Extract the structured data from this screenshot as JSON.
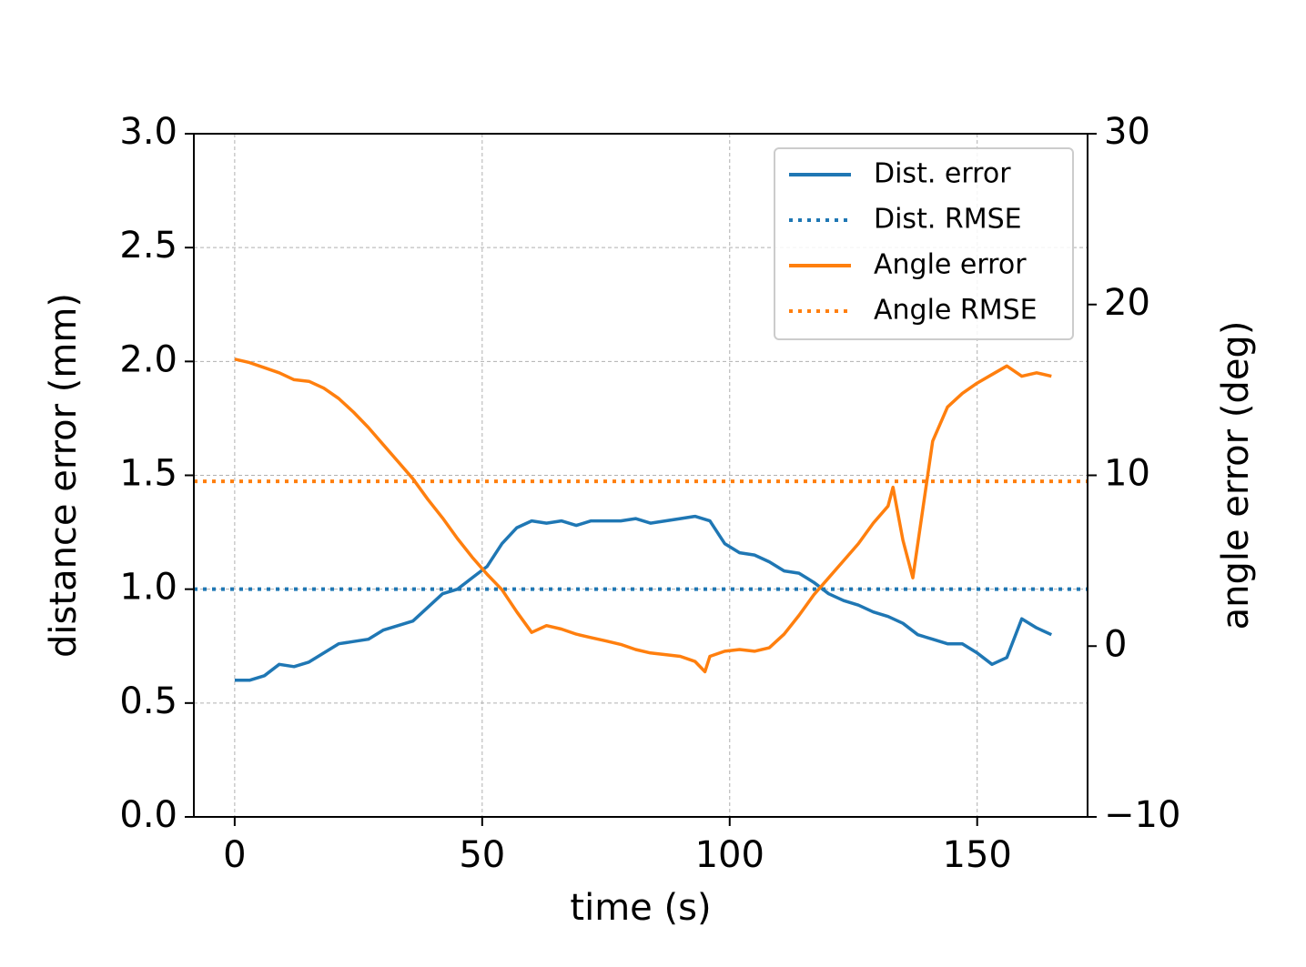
{
  "chart_data": {
    "type": "line",
    "xlabel": "time (s)",
    "ylabel": "distance error (mm)",
    "y2label": "angle error (deg)",
    "xlim": [
      -8.25,
      172.3
    ],
    "ylim": [
      0,
      3
    ],
    "y2lim": [
      -10,
      30
    ],
    "xticks": [
      0,
      50,
      100,
      150
    ],
    "yticks": [
      {
        "value": 0,
        "label": "0.0"
      },
      0.5,
      {
        "value": 1,
        "label": "1.0"
      },
      1.5,
      {
        "value": 2,
        "label": "2.0"
      },
      2.5,
      {
        "value": 3,
        "label": "3.0"
      }
    ],
    "y2ticks": [
      {
        "value": -10,
        "label": "−10"
      },
      0,
      10,
      20,
      30
    ],
    "grid": true,
    "legend": "upper right",
    "series": [
      {
        "name": "Dist. error",
        "color": "#1f77b4",
        "linestyle": "solid",
        "axis": "y",
        "x": [
          0,
          3,
          6,
          9,
          12,
          15,
          18,
          21,
          24,
          27,
          30,
          33,
          36,
          39,
          42,
          45,
          48,
          51,
          54,
          57,
          60,
          63,
          66,
          69,
          72,
          75,
          78,
          81,
          84,
          87,
          90,
          93,
          96,
          99,
          102,
          105,
          108,
          111,
          114,
          117,
          120,
          123,
          126,
          129,
          132,
          135,
          138,
          141,
          144,
          147,
          150,
          153,
          156,
          159,
          162,
          165
        ],
        "values": [
          0.6,
          0.6,
          0.62,
          0.67,
          0.66,
          0.68,
          0.72,
          0.76,
          0.77,
          0.78,
          0.82,
          0.84,
          0.86,
          0.92,
          0.98,
          1.0,
          1.05,
          1.1,
          1.2,
          1.27,
          1.3,
          1.29,
          1.3,
          1.28,
          1.3,
          1.3,
          1.3,
          1.31,
          1.29,
          1.3,
          1.31,
          1.32,
          1.3,
          1.2,
          1.16,
          1.15,
          1.12,
          1.08,
          1.07,
          1.03,
          0.98,
          0.95,
          0.93,
          0.9,
          0.88,
          0.85,
          0.8,
          0.78,
          0.76,
          0.76,
          0.72,
          0.67,
          0.7,
          0.87,
          0.83,
          0.8
        ]
      },
      {
        "name": "Dist. RMSE",
        "color": "#1f77b4",
        "linestyle": "dotted",
        "axis": "y",
        "kind": "hline",
        "value": 1.0
      },
      {
        "name": "Angle error",
        "color": "#ff7f0e",
        "linestyle": "solid",
        "axis": "y2",
        "x": [
          0,
          3,
          6,
          9,
          12,
          15,
          18,
          21,
          24,
          27,
          30,
          33,
          36,
          39,
          42,
          45,
          48,
          51,
          54,
          57,
          60,
          63,
          66,
          69,
          72,
          75,
          78,
          81,
          84,
          87,
          90,
          93,
          95,
          96,
          99,
          102,
          105,
          108,
          111,
          114,
          117,
          120,
          123,
          126,
          129,
          132,
          133,
          135,
          137,
          139,
          141,
          144,
          147,
          150,
          153,
          156,
          159,
          162,
          165
        ],
        "values": [
          16.8,
          16.6,
          16.3,
          16.0,
          15.6,
          15.5,
          15.1,
          14.5,
          13.7,
          12.8,
          11.8,
          10.8,
          9.8,
          8.6,
          7.5,
          6.3,
          5.2,
          4.2,
          3.3,
          2.0,
          0.8,
          1.2,
          1.0,
          0.7,
          0.5,
          0.3,
          0.1,
          -0.2,
          -0.4,
          -0.5,
          -0.6,
          -0.9,
          -1.5,
          -0.6,
          -0.3,
          -0.2,
          -0.3,
          -0.1,
          0.7,
          1.8,
          3.0,
          4.0,
          5.0,
          6.0,
          7.2,
          8.2,
          9.3,
          6.2,
          4.0,
          8.0,
          12.0,
          14.0,
          14.8,
          15.4,
          15.9,
          16.4,
          15.8,
          16.0,
          15.8
        ]
      },
      {
        "name": "Angle RMSE",
        "color": "#ff7f0e",
        "linestyle": "dotted",
        "axis": "y2",
        "kind": "hline",
        "value": 9.65
      }
    ]
  }
}
